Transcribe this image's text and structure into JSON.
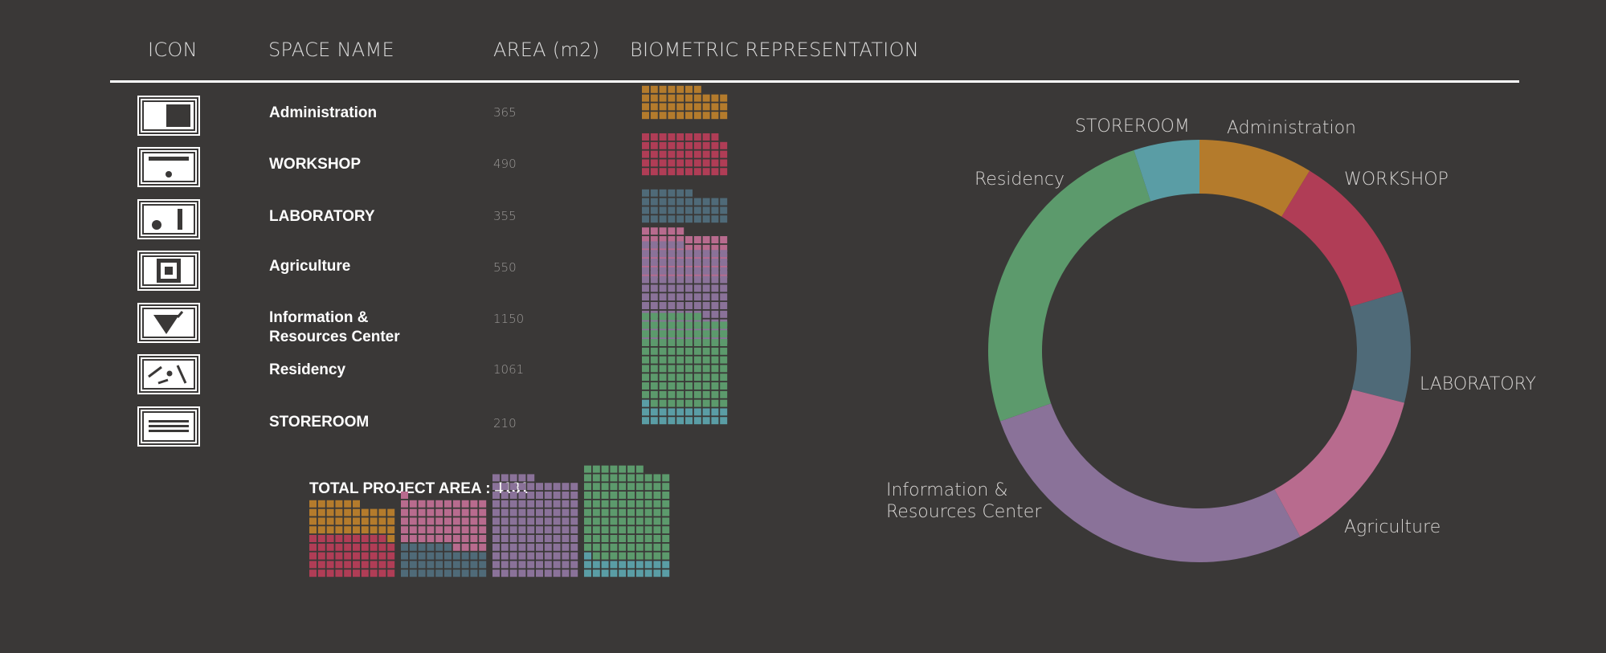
{
  "headers": {
    "icon": "ICON",
    "space_name": "SPACE NAME",
    "area": "AREA (m2)",
    "biometric": "BIOMETRIC REPRESENTATION"
  },
  "colors": {
    "background": "#3a3837",
    "administration": "#b47b2c",
    "workshop": "#b03d56",
    "laboratory": "#4f6a78",
    "agriculture": "#b86b8e",
    "information": "#8a7299",
    "residency": "#5c9a6c",
    "storeroom": "#5a9da5"
  },
  "rows": [
    {
      "name_lines": [
        "Administration"
      ],
      "area": "365",
      "icon": "square-corner-icon"
    },
    {
      "name_lines": [
        "WORKSHOP"
      ],
      "area": "490",
      "icon": "bar-dot-icon"
    },
    {
      "name_lines": [
        "LABORATORY"
      ],
      "area": "355",
      "icon": "dot-bar-icon"
    },
    {
      "name_lines": [
        "Agriculture"
      ],
      "area": "550",
      "icon": "framed-square-icon"
    },
    {
      "name_lines": [
        "Information &",
        "Resources Center"
      ],
      "area": "1150",
      "icon": "triangle-icon"
    },
    {
      "name_lines": [
        "Residency"
      ],
      "area": "1061",
      "icon": "lines-dot-icon"
    },
    {
      "name_lines": [
        "STOREROOM"
      ],
      "area": "210",
      "icon": "stacked-lines-icon"
    }
  ],
  "total_label": "TOTAL PROJECT AREA : 4181",
  "chart_data": {
    "type": "pie",
    "donut": true,
    "total": 4181,
    "slices": [
      {
        "label": "Administration",
        "value": 365,
        "color": "#b47b2c"
      },
      {
        "label": "WORKSHOP",
        "value": 490,
        "color": "#b03d56"
      },
      {
        "label": "LABORATORY",
        "value": 355,
        "color": "#4f6a78"
      },
      {
        "label": "Agriculture",
        "value": 550,
        "color": "#b86b8e"
      },
      {
        "label": "Information & Resources Center",
        "label_lines": [
          "Information &",
          "Resources Center"
        ],
        "value": 1150,
        "color": "#8a7299"
      },
      {
        "label": "Residency",
        "value": 1061,
        "color": "#5c9a6c"
      },
      {
        "label": "STOREROOM",
        "value": 210,
        "color": "#5a9da5"
      }
    ]
  }
}
